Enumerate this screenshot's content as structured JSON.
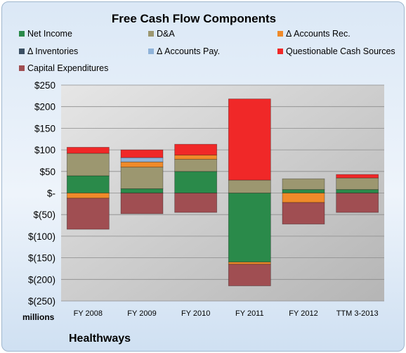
{
  "chart_data": {
    "type": "bar",
    "title": "Free Cash Flow Components",
    "units_label": "millions",
    "company": "Healthways",
    "categories": [
      "FY 2008",
      "FY 2009",
      "FY 2010",
      "FY 2011",
      "FY 2012",
      "TTM 3-2013"
    ],
    "ylim": [
      -250,
      250
    ],
    "y_ticks": [
      250,
      200,
      150,
      100,
      50,
      0,
      -50,
      -100,
      -150,
      -200,
      -250
    ],
    "y_tick_labels": [
      "$250",
      "$200",
      "$150",
      "$100",
      "$50",
      "$-",
      "$(50)",
      "$(100)",
      "$(150)",
      "$(200)",
      "$(250)"
    ],
    "grid": true,
    "legend_position": "top",
    "series": [
      {
        "name": "Net Income",
        "color": "#2a8a4a",
        "values": [
          40,
          10,
          50,
          -160,
          8,
          8
        ]
      },
      {
        "name": "D&A",
        "color": "#9c9770",
        "values": [
          52,
          50,
          28,
          30,
          25,
          27
        ]
      },
      {
        "name": "Δ Accounts Rec.",
        "color": "#ef8a2a",
        "values": [
          -12,
          12,
          10,
          -5,
          -22,
          0
        ]
      },
      {
        "name": "Δ Inventories",
        "color": "#3b4f63",
        "values": [
          0,
          0,
          0,
          0,
          0,
          0
        ]
      },
      {
        "name": "Δ Accounts Pay.",
        "color": "#8fb3d9",
        "values": [
          0,
          10,
          0,
          0,
          0,
          0
        ]
      },
      {
        "name": "Questionable Cash Sources",
        "color": "#f02828",
        "values": [
          14,
          18,
          25,
          188,
          0,
          8
        ]
      },
      {
        "name": "Capital Expenditures",
        "color": "#a04e52",
        "values": [
          -72,
          -48,
          -45,
          -50,
          -50,
          -45
        ]
      }
    ]
  }
}
